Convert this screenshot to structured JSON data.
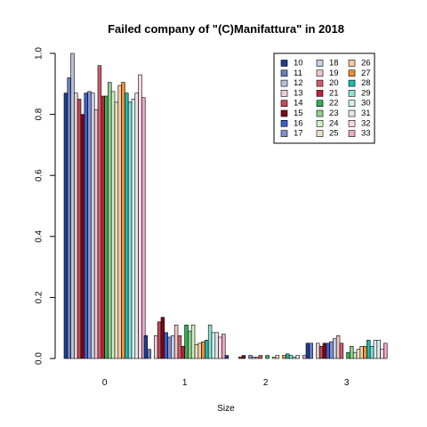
{
  "chart_data": {
    "type": "bar",
    "title": "Failed company of  \"(C)Manifattura\" in 2018",
    "xlabel": "Size",
    "ylabel": "",
    "categories": [
      "0",
      "1",
      "2",
      "3"
    ],
    "ylim": [
      0,
      1.0
    ],
    "yticks": [
      "0.0",
      "0.2",
      "0.4",
      "0.6",
      "0.8",
      "1.0"
    ],
    "legend_position": "top-right",
    "grid": false,
    "series": [
      {
        "name": "10",
        "color": "#1F3F8F",
        "values": [
          0.87,
          0.075,
          0.01,
          0.05
        ]
      },
      {
        "name": "11",
        "color": "#6A7FC0",
        "values": [
          0.92,
          0.03,
          0.0,
          0.05
        ]
      },
      {
        "name": "12",
        "color": "#B8C0D8",
        "values": [
          1.0,
          0.0,
          0.0,
          0.0
        ]
      },
      {
        "name": "13",
        "color": "#E8D0D0",
        "values": [
          0.87,
          0.075,
          0.0,
          0.05
        ]
      },
      {
        "name": "14",
        "color": "#C04A5A",
        "values": [
          0.85,
          0.12,
          0.005,
          0.04
        ]
      },
      {
        "name": "15",
        "color": "#7A0A1A",
        "values": [
          0.8,
          0.135,
          0.01,
          0.05
        ]
      },
      {
        "name": "16",
        "color": "#3A5FCF",
        "values": [
          0.87,
          0.085,
          0.0,
          0.05
        ]
      },
      {
        "name": "17",
        "color": "#8090D0",
        "values": [
          0.875,
          0.07,
          0.01,
          0.055
        ]
      },
      {
        "name": "18",
        "color": "#C8D0E8",
        "values": [
          0.87,
          0.075,
          0.005,
          0.065
        ]
      },
      {
        "name": "19",
        "color": "#F0C8C8",
        "values": [
          0.815,
          0.11,
          0.005,
          0.075
        ]
      },
      {
        "name": "20",
        "color": "#D06070",
        "values": [
          0.96,
          0.075,
          0.01,
          0.05
        ]
      },
      {
        "name": "21",
        "color": "#C0203A",
        "values": [
          0.86,
          0.04,
          0.0,
          0.0
        ]
      },
      {
        "name": "22",
        "color": "#30B050",
        "values": [
          0.86,
          0.11,
          0.01,
          0.02
        ]
      },
      {
        "name": "23",
        "color": "#90D090",
        "values": [
          0.905,
          0.09,
          0.0,
          0.04
        ]
      },
      {
        "name": "24",
        "color": "#D0F0C0",
        "values": [
          0.875,
          0.11,
          0.005,
          0.02
        ]
      },
      {
        "name": "25",
        "color": "#F0E0C8",
        "values": [
          0.84,
          0.045,
          0.01,
          0.03
        ]
      },
      {
        "name": "26",
        "color": "#F8C8A0",
        "values": [
          0.895,
          0.05,
          0.0,
          0.04
        ]
      },
      {
        "name": "27",
        "color": "#F09030",
        "values": [
          0.905,
          0.055,
          0.01,
          0.04
        ]
      },
      {
        "name": "28",
        "color": "#20B8B0",
        "values": [
          0.87,
          0.06,
          0.015,
          0.06
        ]
      },
      {
        "name": "29",
        "color": "#90E0D8",
        "values": [
          0.84,
          0.11,
          0.01,
          0.04
        ]
      },
      {
        "name": "30",
        "color": "#D0F0F0",
        "values": [
          0.85,
          0.085,
          0.005,
          0.06
        ]
      },
      {
        "name": "31",
        "color": "#E8E8E8",
        "values": [
          0.87,
          0.085,
          0.01,
          0.06
        ]
      },
      {
        "name": "32",
        "color": "#F8D8E0",
        "values": [
          0.93,
          0.07,
          0.0,
          0.03
        ]
      },
      {
        "name": "33",
        "color": "#F0A8C8",
        "values": [
          0.855,
          0.08,
          0.01,
          0.05
        ]
      }
    ]
  }
}
